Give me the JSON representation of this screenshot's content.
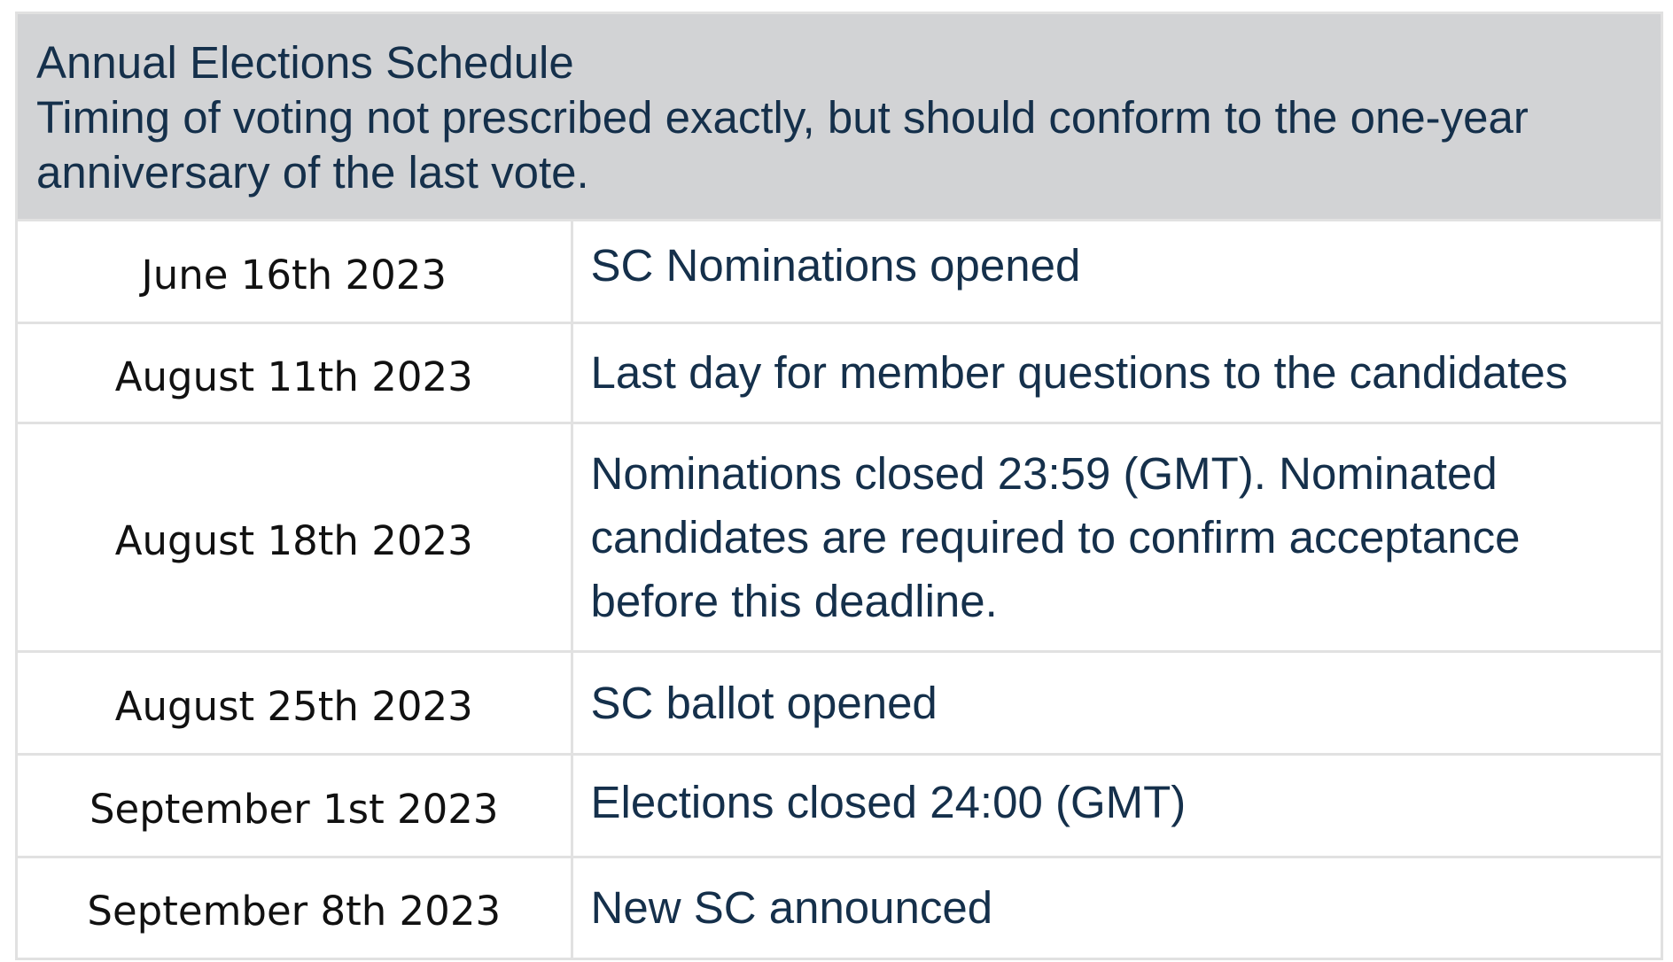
{
  "header": {
    "title": "Annual Elections Schedule",
    "subtitle": "Timing of voting not prescribed exactly, but should conform to the one-year anniversary of the last vote."
  },
  "rows": [
    {
      "date": "June 16th 2023",
      "event": "SC Nominations opened"
    },
    {
      "date": "August 11th 2023",
      "event": "Last day for member questions to the candidates"
    },
    {
      "date": "August 18th 2023",
      "event": "Nominations closed 23:59 (GMT). Nominated candidates are required to confirm acceptance before this deadline."
    },
    {
      "date": "August 25th 2023",
      "event": "SC ballot opened"
    },
    {
      "date": "September 1st 2023",
      "event": "Elections closed 24:00 (GMT)"
    },
    {
      "date": "September 8th 2023",
      "event": "New SC announced"
    }
  ],
  "colors": {
    "header_bg": "#d2d3d5",
    "text": "#15304b",
    "border": "#e1e1e1"
  }
}
